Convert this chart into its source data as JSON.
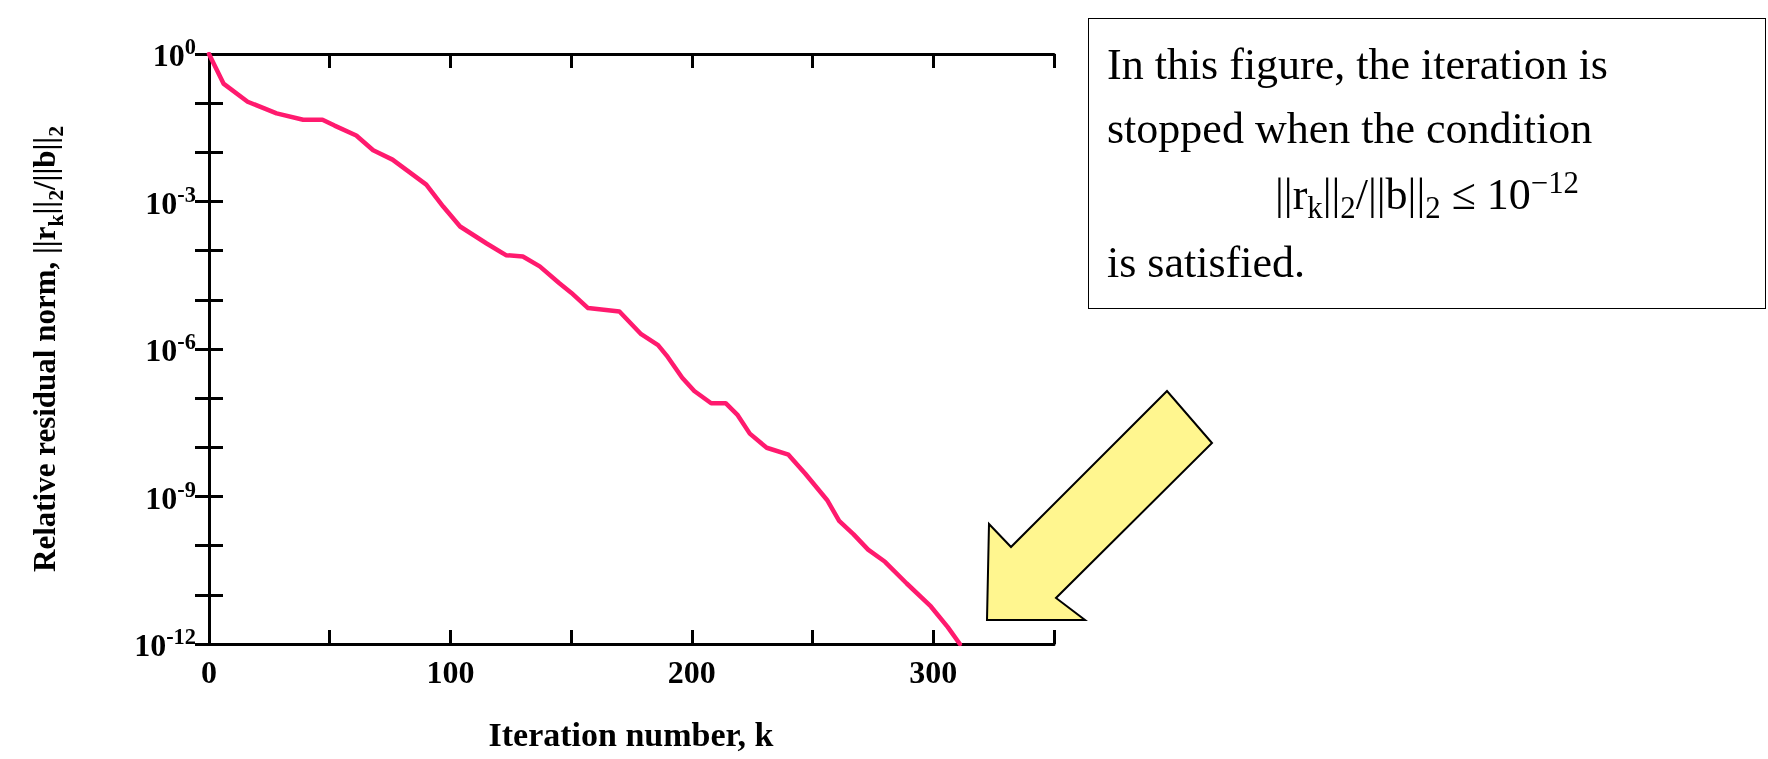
{
  "chart_data": {
    "type": "line",
    "xlabel": "Iteration number, k",
    "ylabel": "Relative residual norm,  ||r$_{k}$||$_{2}$/||b||$_{2}$",
    "log": "y",
    "grid": false,
    "marker": "none",
    "line_style": "solid",
    "xlim": [
      0,
      350
    ],
    "xticks": [
      0,
      {
        "value": 50,
        "label": null
      },
      100,
      {
        "value": 150,
        "label": null
      },
      200,
      {
        "value": 250,
        "label": null
      },
      300,
      {
        "value": 350,
        "label": null
      }
    ],
    "ylim": [
      1e-12,
      1
    ],
    "yticks": [
      {
        "value": 1,
        "label": "10$^{0}$"
      },
      {
        "value": 0.1,
        "label": null
      },
      {
        "value": 0.01,
        "label": null
      },
      {
        "value": 0.001,
        "label": "10$^{-3}$"
      },
      {
        "value": 0.0001,
        "label": null
      },
      {
        "value": 1e-05,
        "label": null
      },
      {
        "value": 1e-06,
        "label": "10$^{-6}$"
      },
      {
        "value": 1e-07,
        "label": null
      },
      {
        "value": 1e-08,
        "label": null
      },
      {
        "value": 1e-09,
        "label": "10$^{-9}$"
      },
      {
        "value": 1e-10,
        "label": null
      },
      {
        "value": 1e-11,
        "label": null
      },
      {
        "value": 1e-12,
        "label": "10$^{-12}$"
      }
    ],
    "x": [
      0,
      6,
      16,
      28,
      39,
      47,
      52,
      61,
      68,
      76,
      90,
      97,
      104,
      115,
      123,
      130,
      137,
      145,
      150,
      157,
      170,
      179,
      186,
      190,
      196,
      201,
      208,
      214,
      219,
      224,
      231,
      240,
      247,
      256,
      261,
      267,
      273,
      280,
      289,
      299,
      306,
      311
    ],
    "series": [
      {
        "color": "#ff1a6e",
        "values": [
          1,
          0.25,
          0.107,
          0.062,
          0.046,
          0.046,
          0.035,
          0.022,
          0.011,
          0.0071,
          0.0022,
          0.00079,
          0.00031,
          0.00014,
          8.1e-05,
          7.6e-05,
          4.8e-05,
          2.2e-05,
          1.4e-05,
          6.8e-06,
          5.8e-06,
          2e-06,
          1.2e-06,
          6.9e-07,
          2.6e-07,
          1.4e-07,
          7.9e-08,
          7.9e-08,
          4.5e-08,
          1.9e-08,
          9.8e-09,
          7.1e-09,
          2.9e-09,
          8.5e-10,
          3.2e-10,
          1.7e-10,
          8.3e-11,
          4.7e-11,
          1.7e-11,
          5.8e-12,
          2.2e-12,
          1e-12
        ]
      }
    ],
    "annotations": [
      "In this figure, the iteration is",
      "stopped when the condition",
      "||r$_{k}$||$_{2}$/||b||$_{2}$ ≤ 10$^{−12}$",
      "is satisfied."
    ]
  }
}
